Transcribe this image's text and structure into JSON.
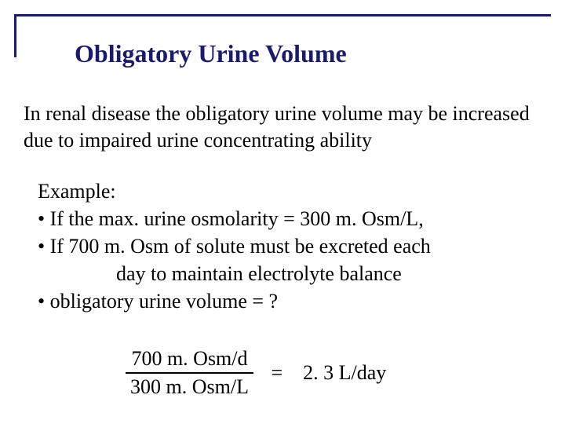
{
  "accent_color": "#1a1a6e",
  "text_color": "#000000",
  "title": "Obligatory Urine Volume",
  "intro": "In renal disease the obligatory urine volume may be increased due to impaired urine concentrating ability",
  "example": {
    "heading": "Example:",
    "bullet1": "• If the max. urine osmolarity = 300 m. Osm/L,",
    "bullet2": "• If 700 m. Osm of solute must be excreted each",
    "bullet2_cont": "day to maintain electrolyte balance",
    "bullet3": "• obligatory urine volume = ?"
  },
  "formula": {
    "numerator": "700 m. Osm/d",
    "denominator": "300 m. Osm/L",
    "equals": "=",
    "result": "2. 3 L/day"
  }
}
